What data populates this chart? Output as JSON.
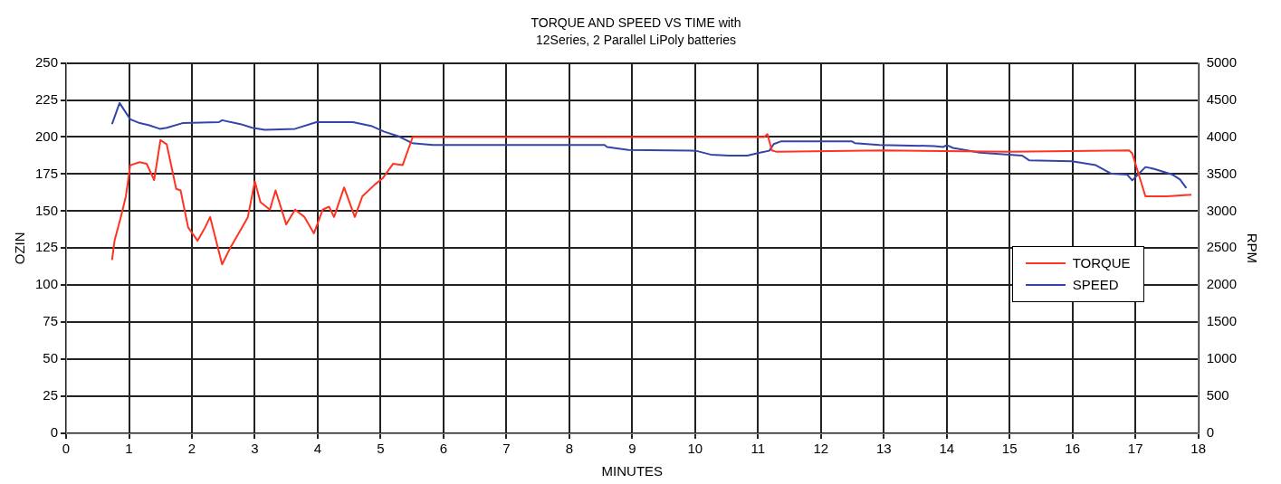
{
  "chart_data": {
    "type": "line",
    "title": "TORQUE AND SPEED VS TIME with",
    "subtitle": "12Series, 2 Parallel LiPoly batteries",
    "xlabel": "MINUTES",
    "ylabel": "OZIN",
    "y2label": "RPM",
    "xlim": [
      0,
      18
    ],
    "xticks": [
      0,
      1,
      2,
      3,
      4,
      5,
      6,
      7,
      8,
      9,
      10,
      11,
      12,
      13,
      14,
      15,
      16,
      17,
      18
    ],
    "ylim": [
      0,
      250
    ],
    "yticks": [
      0,
      25,
      50,
      75,
      100,
      125,
      150,
      175,
      200,
      225,
      250
    ],
    "y2lim": [
      0,
      5000
    ],
    "y2ticks": [
      0,
      500,
      1000,
      1500,
      2000,
      2500,
      3000,
      3500,
      4000,
      4500,
      5000
    ],
    "grid": true,
    "legend": "right",
    "marker": "none",
    "line_style": "solid",
    "series": [
      {
        "name": "TORQUE",
        "color": "#ff3322",
        "x": [
          0.73,
          0.77,
          0.87,
          0.95,
          1.02,
          1.17,
          1.28,
          1.4,
          1.5,
          1.6,
          1.75,
          1.82,
          1.94,
          2.09,
          2.21,
          2.29,
          2.48,
          2.62,
          2.77,
          2.89,
          3.0,
          3.09,
          3.24,
          3.33,
          3.5,
          3.64,
          3.79,
          3.94,
          4.08,
          4.18,
          4.26,
          4.42,
          4.59,
          4.71,
          4.91,
          5.03,
          5.2,
          5.35,
          5.51,
          8.0,
          11.1,
          11.15,
          11.22,
          11.3,
          13.0,
          15.0,
          16.9,
          16.95,
          17.16,
          17.5,
          17.89
        ],
        "values": [
          117,
          130,
          146,
          160,
          181,
          183,
          182,
          171,
          198,
          195,
          165,
          164,
          139,
          130,
          139,
          146,
          114,
          126,
          137,
          146,
          170,
          156,
          151,
          164,
          141,
          151,
          146,
          135,
          151,
          153,
          146,
          166,
          146,
          160,
          168,
          172,
          182,
          181,
          200,
          200,
          200,
          202,
          191,
          190,
          191,
          190,
          191,
          189,
          160,
          160,
          161
        ]
      },
      {
        "name": "SPEED",
        "color": "#3344aa",
        "axis": "y2",
        "x": [
          0.73,
          0.85,
          1.02,
          1.17,
          1.31,
          1.49,
          1.6,
          1.85,
          2.43,
          2.48,
          2.77,
          2.96,
          3.16,
          3.64,
          3.98,
          4.56,
          4.85,
          5.06,
          5.29,
          5.5,
          5.83,
          8.56,
          8.6,
          8.94,
          10.01,
          10.25,
          10.54,
          10.83,
          11.03,
          11.18,
          11.25,
          11.37,
          12.49,
          12.54,
          12.93,
          13.8,
          13.95,
          14.0,
          14.1,
          14.53,
          15.2,
          15.31,
          15.99,
          16.37,
          16.62,
          16.87,
          16.95,
          17.16,
          17.3,
          17.59,
          17.71,
          17.81
        ],
        "values": [
          4175,
          4459,
          4240,
          4188,
          4162,
          4111,
          4124,
          4188,
          4201,
          4227,
          4175,
          4124,
          4098,
          4111,
          4201,
          4201,
          4150,
          4072,
          4008,
          3918,
          3892,
          3892,
          3866,
          3827,
          3815,
          3763,
          3750,
          3750,
          3789,
          3815,
          3905,
          3943,
          3943,
          3918,
          3892,
          3879,
          3866,
          3892,
          3853,
          3789,
          3750,
          3686,
          3673,
          3621,
          3505,
          3492,
          3415,
          3595,
          3570,
          3492,
          3428,
          3312
        ]
      }
    ]
  }
}
